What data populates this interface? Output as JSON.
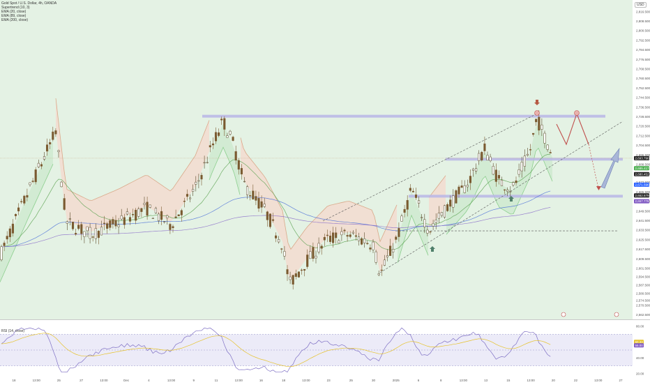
{
  "legend": {
    "title": "Gold Spot / U.S. Dollar, 4h, OANDA",
    "indicators": [
      "Supertrend (10, 3)",
      "EMA (20, close)",
      "EMA (89, close)",
      "EMA (200, close)"
    ]
  },
  "currency": "USD",
  "rsi_label": "RSI (14, close)",
  "price_badges": [
    {
      "value": "2,693.790",
      "color": "#222222"
    },
    {
      "value": "2,685.417",
      "color": "#4caf50"
    },
    {
      "value": "2,680.452",
      "color": "#222222"
    },
    {
      "value": "2,671.596",
      "color": "#2962ff"
    },
    {
      "value": "2,662.679",
      "color": "#222222"
    },
    {
      "value": "2,657.776",
      "color": "#7e57c2"
    }
  ],
  "rsi_badges": [
    {
      "value": "60.33",
      "color": "#e6c229"
    },
    {
      "value": "56.00",
      "color": "#7e57c2"
    }
  ],
  "colors": {
    "up_candle": "#5a4a2a",
    "down_candle": "#7a5a30",
    "supertrend_up_fill": "#cfead0",
    "supertrend_down_fill": "#f2ddd0",
    "level_band": "#b9b6e6",
    "arrow_red": "#c0504d",
    "rsi_line": "#7e6fc4",
    "rsi_ma": "#e6c229"
  },
  "chart_data": {
    "type": "candlestick",
    "title": "Gold Spot / U.S. Dollar, 4h, OANDA",
    "y_axis": {
      "range": [
        2560,
        2824
      ],
      "ticks": [
        2562.5,
        2570.5,
        2574.5,
        2580.5,
        2587.5,
        2594.5,
        2601.5,
        2609.5,
        2617.5,
        2625.5,
        2633.5,
        2641.5,
        2649.5,
        2657.5,
        2665.5,
        2673.5,
        2680.5,
        2688.5,
        2696.5,
        2704.5,
        2712.5,
        2720.5,
        2728.5,
        2736.5,
        2744.5,
        2752.5,
        2760.5,
        2768.5,
        2776.5,
        2784.5,
        2792.5,
        2800.5,
        2808.5,
        2816.5
      ]
    },
    "x_axis": {
      "ticks": [
        "18",
        "13:00",
        "25",
        "27",
        "13:00",
        "Dec",
        "4",
        "13:00",
        "9",
        "11",
        "13:00",
        "16",
        "18",
        "13:00",
        "23",
        "25",
        "30",
        "2025",
        "6",
        "8",
        "13:00",
        "13",
        "15",
        "13:00",
        "20",
        "22",
        "13:00",
        "27"
      ]
    },
    "key_levels": [
      2729,
      2693,
      2662,
      2633
    ],
    "last_price": 2693.79,
    "rsi": {
      "range": [
        20,
        80
      ],
      "ticks": [
        80.0,
        40.0,
        20.0
      ],
      "upper": 70,
      "lower": 30,
      "last": 60.33,
      "ma_last": 56.0
    }
  }
}
